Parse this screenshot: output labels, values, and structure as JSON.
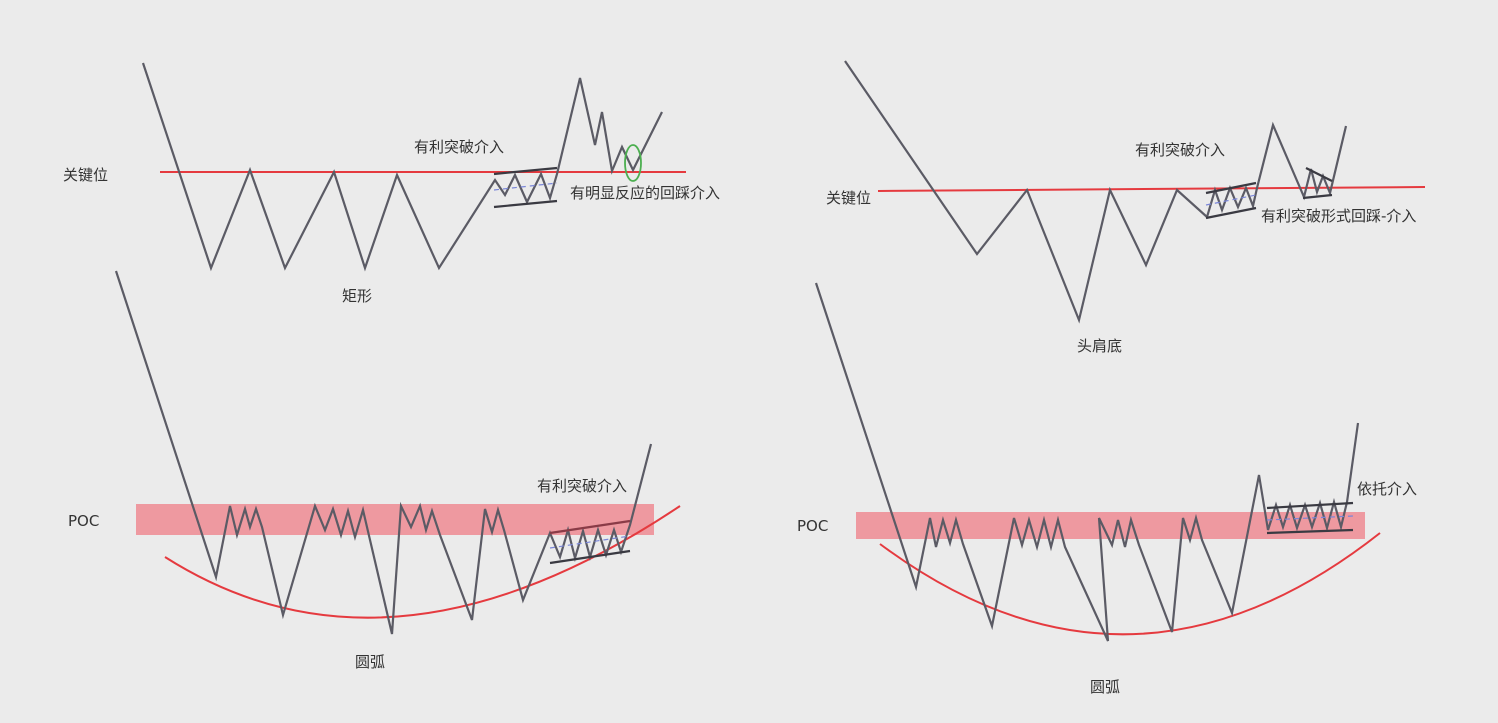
{
  "colors": {
    "background": "#ebebeb",
    "key_line": "#e53a3f",
    "poc_band": "#ee959c",
    "arc": "#e53a3f",
    "price_line": "#5b5b65",
    "channel": "#3a3a42",
    "channel_dash": "#7a86d8",
    "retest_marker": "#4caf50"
  },
  "panels": {
    "rectangle": {
      "key_label": "关键位",
      "breakout_label": "有利突破介入",
      "retest_label": "有明显反应的回踩介入",
      "pattern_label": "矩形"
    },
    "head_shoulders": {
      "key_label": "关键位",
      "breakout_label": "有利突破介入",
      "retest_label": "有利突破形式回踩-介入",
      "pattern_label": "头肩底"
    },
    "arc_left": {
      "poc_label": "POC",
      "breakout_label": "有利突破介入",
      "pattern_label": "圆弧"
    },
    "arc_right": {
      "poc_label": "POC",
      "support_label": "依托介入",
      "pattern_label": "圆弧"
    }
  }
}
